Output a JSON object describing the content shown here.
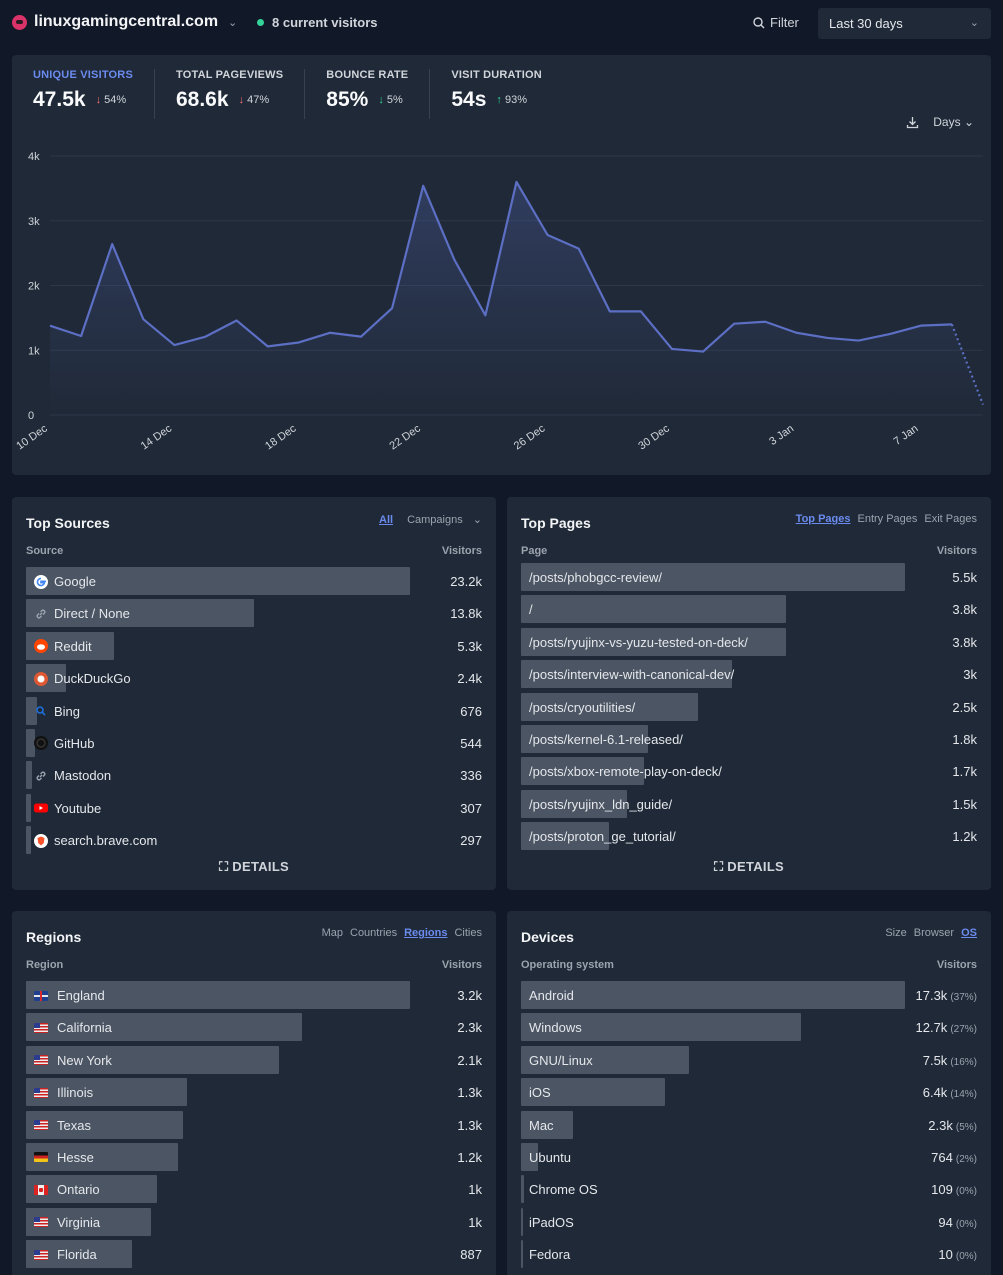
{
  "header": {
    "site_name": "linuxgamingcentral.com",
    "current_visitors": "8 current visitors",
    "filter_label": "Filter",
    "period": "Last 30 days"
  },
  "stats": [
    {
      "label": "UNIQUE VISITORS",
      "value": "47.5k",
      "change": "54%",
      "direction": "down"
    },
    {
      "label": "TOTAL PAGEVIEWS",
      "value": "68.6k",
      "change": "47%",
      "direction": "down"
    },
    {
      "label": "BOUNCE RATE",
      "value": "85%",
      "change": "5%",
      "direction": "down"
    },
    {
      "label": "VISIT DURATION",
      "value": "54s",
      "change": "93%",
      "direction": "up"
    }
  ],
  "chart_controls": {
    "interval": "Days"
  },
  "chart_data": {
    "type": "area",
    "title": "",
    "xlabel": "",
    "ylabel": "",
    "ylim": [
      0,
      4000
    ],
    "y_ticks": [
      "0",
      "1k",
      "2k",
      "3k",
      "4k"
    ],
    "x_tick_labels": [
      "10 Dec",
      "14 Dec",
      "18 Dec",
      "22 Dec",
      "26 Dec",
      "30 Dec",
      "3 Jan",
      "7 Jan"
    ],
    "x": [
      "10 Dec",
      "11 Dec",
      "12 Dec",
      "13 Dec",
      "14 Dec",
      "15 Dec",
      "16 Dec",
      "17 Dec",
      "18 Dec",
      "19 Dec",
      "20 Dec",
      "21 Dec",
      "22 Dec",
      "23 Dec",
      "24 Dec",
      "25 Dec",
      "26 Dec",
      "27 Dec",
      "28 Dec",
      "29 Dec",
      "30 Dec",
      "31 Dec",
      "1 Jan",
      "2 Jan",
      "3 Jan",
      "4 Jan",
      "5 Jan",
      "6 Jan",
      "7 Jan",
      "8 Jan",
      "9 Jan"
    ],
    "series": [
      {
        "name": "Visitors",
        "values": [
          1380,
          1220,
          2640,
          1480,
          1080,
          1210,
          1460,
          1060,
          1120,
          1270,
          1210,
          1650,
          3540,
          2400,
          1540,
          3600,
          2780,
          2570,
          1600,
          1600,
          1020,
          980,
          1410,
          1440,
          1270,
          1190,
          1150,
          1250,
          1380,
          1400,
          160
        ]
      }
    ],
    "partial_last_point": true,
    "line_color": "#5c6fc4"
  },
  "sources": {
    "title": "Top Sources",
    "tabs": [
      "All",
      "Campaigns"
    ],
    "col_left": "Source",
    "col_right": "Visitors",
    "details": "DETAILS",
    "rows": [
      {
        "label": "Google",
        "value": "23.2k",
        "fraction": 1.0,
        "icon": "google-icon"
      },
      {
        "label": "Direct / None",
        "value": "13.8k",
        "fraction": 0.595,
        "icon": "link-icon"
      },
      {
        "label": "Reddit",
        "value": "5.3k",
        "fraction": 0.23,
        "icon": "reddit-icon"
      },
      {
        "label": "DuckDuckGo",
        "value": "2.4k",
        "fraction": 0.105,
        "icon": "duckduckgo-icon"
      },
      {
        "label": "Bing",
        "value": "676",
        "fraction": 0.029,
        "icon": "bing-icon"
      },
      {
        "label": "GitHub",
        "value": "544",
        "fraction": 0.023,
        "icon": "github-icon"
      },
      {
        "label": "Mastodon",
        "value": "336",
        "fraction": 0.015,
        "icon": "link-icon"
      },
      {
        "label": "Youtube",
        "value": "307",
        "fraction": 0.013,
        "icon": "youtube-icon"
      },
      {
        "label": "search.brave.com",
        "value": "297",
        "fraction": 0.013,
        "icon": "brave-icon"
      }
    ]
  },
  "pages": {
    "title": "Top Pages",
    "tabs": [
      "Top Pages",
      "Entry Pages",
      "Exit Pages"
    ],
    "col_left": "Page",
    "col_right": "Visitors",
    "details": "DETAILS",
    "rows": [
      {
        "label": "/posts/phobgcc-review/",
        "value": "5.5k",
        "fraction": 1.0
      },
      {
        "label": "/",
        "value": "3.8k",
        "fraction": 0.69
      },
      {
        "label": "/posts/ryujinx-vs-yuzu-tested-on-deck/",
        "value": "3.8k",
        "fraction": 0.69
      },
      {
        "label": "/posts/interview-with-canonical-dev/",
        "value": "3k",
        "fraction": 0.55
      },
      {
        "label": "/posts/cryoutilities/",
        "value": "2.5k",
        "fraction": 0.46
      },
      {
        "label": "/posts/kernel-6.1-released/",
        "value": "1.8k",
        "fraction": 0.33
      },
      {
        "label": "/posts/xbox-remote-play-on-deck/",
        "value": "1.7k",
        "fraction": 0.32
      },
      {
        "label": "/posts/ryujinx_ldn_guide/",
        "value": "1.5k",
        "fraction": 0.275
      },
      {
        "label": "/posts/proton_ge_tutorial/",
        "value": "1.2k",
        "fraction": 0.23
      }
    ]
  },
  "regions": {
    "title": "Regions",
    "tabs": [
      "Map",
      "Countries",
      "Regions",
      "Cities"
    ],
    "col_left": "Region",
    "col_right": "Visitors",
    "rows": [
      {
        "label": "England",
        "value": "3.2k",
        "fraction": 1.0,
        "flag": "gb"
      },
      {
        "label": "California",
        "value": "2.3k",
        "fraction": 0.72,
        "flag": "us"
      },
      {
        "label": "New York",
        "value": "2.1k",
        "fraction": 0.66,
        "flag": "us"
      },
      {
        "label": "Illinois",
        "value": "1.3k",
        "fraction": 0.42,
        "flag": "us"
      },
      {
        "label": "Texas",
        "value": "1.3k",
        "fraction": 0.41,
        "flag": "us"
      },
      {
        "label": "Hesse",
        "value": "1.2k",
        "fraction": 0.395,
        "flag": "de"
      },
      {
        "label": "Ontario",
        "value": "1k",
        "fraction": 0.34,
        "flag": "ca"
      },
      {
        "label": "Virginia",
        "value": "1k",
        "fraction": 0.325,
        "flag": "us"
      },
      {
        "label": "Florida",
        "value": "887",
        "fraction": 0.275,
        "flag": "us"
      }
    ]
  },
  "devices": {
    "title": "Devices",
    "tabs": [
      "Size",
      "Browser",
      "OS"
    ],
    "col_left": "Operating system",
    "col_right": "Visitors",
    "rows": [
      {
        "label": "Android",
        "value": "17.3k",
        "pct": "(37%)",
        "fraction": 1.0
      },
      {
        "label": "Windows",
        "value": "12.7k",
        "pct": "(27%)",
        "fraction": 0.73
      },
      {
        "label": "GNU/Linux",
        "value": "7.5k",
        "pct": "(16%)",
        "fraction": 0.437
      },
      {
        "label": "iOS",
        "value": "6.4k",
        "pct": "(14%)",
        "fraction": 0.375
      },
      {
        "label": "Mac",
        "value": "2.3k",
        "pct": "(5%)",
        "fraction": 0.135
      },
      {
        "label": "Ubuntu",
        "value": "764",
        "pct": "(2%)",
        "fraction": 0.044
      },
      {
        "label": "Chrome OS",
        "value": "109",
        "pct": "(0%)",
        "fraction": 0.007
      },
      {
        "label": "iPadOS",
        "value": "94",
        "pct": "(0%)",
        "fraction": 0.006
      },
      {
        "label": "Fedora",
        "value": "10",
        "pct": "(0%)",
        "fraction": 0.003
      }
    ]
  }
}
